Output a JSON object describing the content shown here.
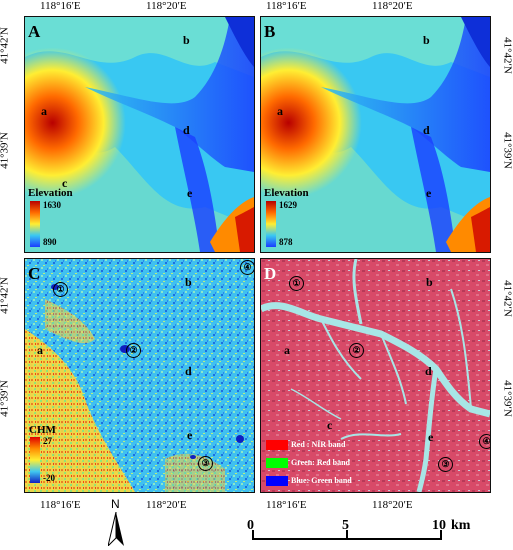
{
  "coords": {
    "lon_left": "118°16′E",
    "lon_right": "118°20′E",
    "lat_top": "41°42′N",
    "lat_bottom": "41°39′N"
  },
  "panels": [
    {
      "id": "A",
      "type": "elevation",
      "legend_title": "Elevation",
      "max": "1630",
      "min": "890"
    },
    {
      "id": "B",
      "type": "elevation",
      "legend_title": "Elevation",
      "max": "1629",
      "min": "878"
    },
    {
      "id": "C",
      "type": "chm",
      "legend_title": "CHM",
      "max": "27",
      "min": "-20"
    },
    {
      "id": "D",
      "type": "false-color"
    }
  ],
  "sites": [
    "a",
    "b",
    "c",
    "d",
    "e"
  ],
  "plots": [
    "①",
    "②",
    "③",
    "④"
  ],
  "rgb_legend": [
    {
      "label": "Red :  NIR band",
      "color": "#ff0000"
    },
    {
      "label": "Green: Red band",
      "color": "#00ff00"
    },
    {
      "label": "Blue:  Green band",
      "color": "#0000ff"
    }
  ],
  "north": "N",
  "scalebar": {
    "ticks": [
      "0",
      "5",
      "10"
    ],
    "unit": "km"
  },
  "colors": {
    "elev_high": "#b80000",
    "elev_mid": "#ffee33",
    "elev_low": "#1a3dff",
    "chm_bg": "#33bbee",
    "false_color": "#d84a6a",
    "river_cyan": "#a8e6e6"
  }
}
